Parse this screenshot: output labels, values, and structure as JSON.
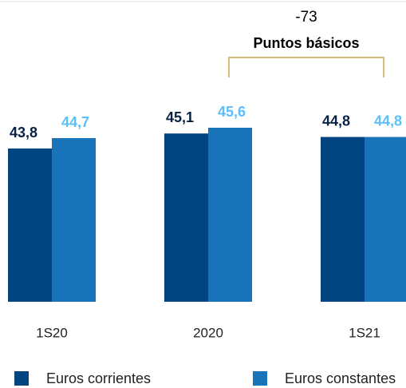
{
  "chart_data": {
    "type": "bar",
    "categories": [
      "1S20",
      "2020",
      "1S21"
    ],
    "series": [
      {
        "name": "Euros corrientes",
        "color": "#004481",
        "label_color": "#072146",
        "values": [
          43.8,
          45.1,
          44.8
        ],
        "value_labels": [
          "43,8",
          "45,1",
          "44,8"
        ]
      },
      {
        "name": "Euros constantes",
        "color": "#1973b8",
        "label_color": "#5bbeff",
        "values": [
          44.7,
          45.6,
          44.8
        ],
        "value_labels": [
          "44,7",
          "45,6",
          "44,8"
        ]
      }
    ],
    "annotation": {
      "value": "-73",
      "label": "Puntos básicos",
      "color": "#d8be75"
    }
  }
}
